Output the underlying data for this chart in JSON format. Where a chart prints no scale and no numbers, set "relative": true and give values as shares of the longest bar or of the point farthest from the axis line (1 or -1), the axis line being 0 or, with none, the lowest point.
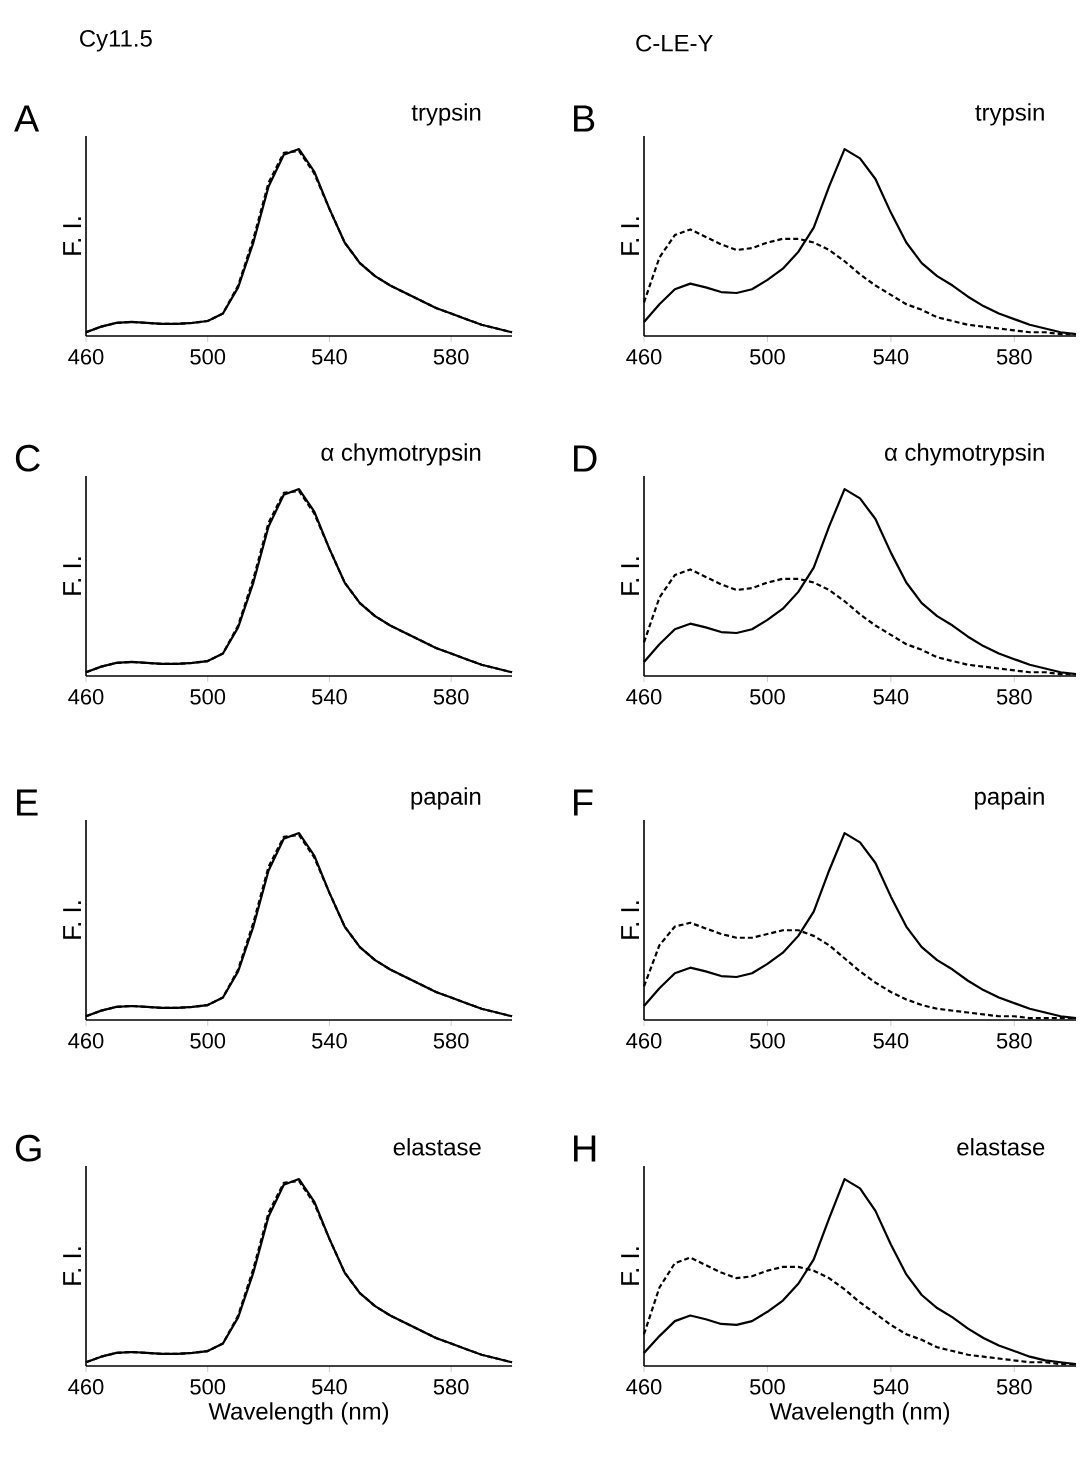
{
  "chart_data": [
    {
      "type": "line",
      "title": "Cy11.5",
      "ylabel": "F. I.",
      "annotations": [
        "A",
        "trypsin"
      ],
      "relative": true,
      "tick_labels": "x",
      "xlim": [
        460,
        600
      ],
      "xticks": [
        460,
        500,
        540,
        580
      ],
      "x": [
        460,
        465,
        470,
        475,
        480,
        485,
        490,
        495,
        500,
        505,
        510,
        515,
        520,
        525,
        530,
        535,
        540,
        545,
        550,
        555,
        560,
        565,
        570,
        575,
        580,
        585,
        590,
        595,
        600
      ],
      "series": [
        {
          "color": "#000000",
          "line_style": "solid",
          "values": [
            0.02,
            0.05,
            0.07,
            0.075,
            0.07,
            0.065,
            0.065,
            0.07,
            0.08,
            0.12,
            0.26,
            0.5,
            0.8,
            0.97,
            1.0,
            0.88,
            0.68,
            0.5,
            0.39,
            0.32,
            0.27,
            0.23,
            0.19,
            0.15,
            0.12,
            0.09,
            0.06,
            0.04,
            0.02
          ]
        },
        {
          "color": "#000000",
          "line_style": "dashed",
          "values": [
            0.02,
            0.05,
            0.07,
            0.075,
            0.07,
            0.065,
            0.065,
            0.07,
            0.08,
            0.12,
            0.27,
            0.52,
            0.82,
            0.98,
            0.99,
            0.87,
            0.68,
            0.5,
            0.39,
            0.32,
            0.27,
            0.23,
            0.19,
            0.15,
            0.12,
            0.09,
            0.06,
            0.04,
            0.02
          ]
        }
      ]
    },
    {
      "type": "line",
      "title": "C-LE-Y",
      "ylabel": "F. I.",
      "annotations": [
        "B",
        "trypsin"
      ],
      "relative": true,
      "tick_labels": "x",
      "xlim": [
        460,
        600
      ],
      "xticks": [
        460,
        500,
        540,
        580
      ],
      "x": [
        460,
        465,
        470,
        475,
        480,
        485,
        490,
        495,
        500,
        505,
        510,
        515,
        520,
        525,
        530,
        535,
        540,
        545,
        550,
        555,
        560,
        565,
        570,
        575,
        580,
        585,
        590,
        595,
        600
      ],
      "series": [
        {
          "color": "#000000",
          "line_style": "solid",
          "values": [
            0.075,
            0.17,
            0.25,
            0.28,
            0.26,
            0.235,
            0.23,
            0.25,
            0.3,
            0.36,
            0.45,
            0.58,
            0.8,
            1.0,
            0.95,
            0.84,
            0.66,
            0.5,
            0.39,
            0.32,
            0.27,
            0.21,
            0.16,
            0.12,
            0.09,
            0.06,
            0.04,
            0.02,
            0.01
          ]
        },
        {
          "color": "#000000",
          "line_style": "dashed",
          "values": [
            0.18,
            0.42,
            0.54,
            0.57,
            0.53,
            0.49,
            0.46,
            0.47,
            0.5,
            0.52,
            0.52,
            0.5,
            0.46,
            0.4,
            0.33,
            0.27,
            0.22,
            0.17,
            0.14,
            0.1,
            0.08,
            0.06,
            0.05,
            0.04,
            0.03,
            0.02,
            0.02,
            0.01,
            0.01
          ]
        }
      ]
    },
    {
      "type": "line",
      "ylabel": "F. I.",
      "annotations": [
        "C",
        "α chymotrypsin"
      ],
      "relative": true,
      "tick_labels": "x",
      "xlim": [
        460,
        600
      ],
      "xticks": [
        460,
        500,
        540,
        580
      ],
      "x": [
        460,
        465,
        470,
        475,
        480,
        485,
        490,
        495,
        500,
        505,
        510,
        515,
        520,
        525,
        530,
        535,
        540,
        545,
        550,
        555,
        560,
        565,
        570,
        575,
        580,
        585,
        590,
        595,
        600
      ],
      "series": [
        {
          "color": "#000000",
          "line_style": "solid",
          "values": [
            0.02,
            0.05,
            0.07,
            0.075,
            0.07,
            0.065,
            0.065,
            0.07,
            0.08,
            0.12,
            0.26,
            0.5,
            0.8,
            0.97,
            1.0,
            0.88,
            0.68,
            0.5,
            0.39,
            0.32,
            0.27,
            0.23,
            0.19,
            0.15,
            0.12,
            0.09,
            0.06,
            0.04,
            0.02
          ]
        },
        {
          "color": "#000000",
          "line_style": "dashed",
          "values": [
            0.02,
            0.05,
            0.07,
            0.075,
            0.07,
            0.065,
            0.065,
            0.07,
            0.08,
            0.12,
            0.27,
            0.52,
            0.82,
            0.98,
            0.99,
            0.87,
            0.68,
            0.5,
            0.39,
            0.32,
            0.27,
            0.23,
            0.19,
            0.15,
            0.12,
            0.09,
            0.06,
            0.04,
            0.02
          ]
        }
      ]
    },
    {
      "type": "line",
      "ylabel": "F. I.",
      "annotations": [
        "D",
        "α chymotrypsin"
      ],
      "relative": true,
      "tick_labels": "x",
      "xlim": [
        460,
        600
      ],
      "xticks": [
        460,
        500,
        540,
        580
      ],
      "x": [
        460,
        465,
        470,
        475,
        480,
        485,
        490,
        495,
        500,
        505,
        510,
        515,
        520,
        525,
        530,
        535,
        540,
        545,
        550,
        555,
        560,
        565,
        570,
        575,
        580,
        585,
        590,
        595,
        600
      ],
      "series": [
        {
          "color": "#000000",
          "line_style": "solid",
          "values": [
            0.075,
            0.17,
            0.25,
            0.28,
            0.26,
            0.235,
            0.23,
            0.25,
            0.3,
            0.36,
            0.45,
            0.58,
            0.8,
            1.0,
            0.95,
            0.84,
            0.66,
            0.5,
            0.39,
            0.32,
            0.27,
            0.21,
            0.16,
            0.12,
            0.09,
            0.06,
            0.04,
            0.02,
            0.01
          ]
        },
        {
          "color": "#000000",
          "line_style": "dashed",
          "values": [
            0.18,
            0.42,
            0.54,
            0.57,
            0.53,
            0.49,
            0.46,
            0.47,
            0.5,
            0.52,
            0.52,
            0.5,
            0.46,
            0.4,
            0.33,
            0.27,
            0.22,
            0.17,
            0.14,
            0.1,
            0.08,
            0.06,
            0.05,
            0.04,
            0.03,
            0.02,
            0.02,
            0.01,
            0.01
          ]
        }
      ]
    },
    {
      "type": "line",
      "ylabel": "F. I.",
      "annotations": [
        "E",
        "papain"
      ],
      "relative": true,
      "tick_labels": "x",
      "xlim": [
        460,
        600
      ],
      "xticks": [
        460,
        500,
        540,
        580
      ],
      "x": [
        460,
        465,
        470,
        475,
        480,
        485,
        490,
        495,
        500,
        505,
        510,
        515,
        520,
        525,
        530,
        535,
        540,
        545,
        550,
        555,
        560,
        565,
        570,
        575,
        580,
        585,
        590,
        595,
        600
      ],
      "series": [
        {
          "color": "#000000",
          "line_style": "solid",
          "values": [
            0.02,
            0.05,
            0.07,
            0.075,
            0.07,
            0.065,
            0.065,
            0.07,
            0.08,
            0.12,
            0.26,
            0.5,
            0.8,
            0.97,
            1.0,
            0.88,
            0.68,
            0.5,
            0.39,
            0.32,
            0.27,
            0.23,
            0.19,
            0.15,
            0.12,
            0.09,
            0.06,
            0.04,
            0.02
          ]
        },
        {
          "color": "#000000",
          "line_style": "dashed",
          "values": [
            0.02,
            0.05,
            0.07,
            0.075,
            0.07,
            0.065,
            0.065,
            0.07,
            0.08,
            0.12,
            0.27,
            0.52,
            0.82,
            0.98,
            0.99,
            0.87,
            0.68,
            0.5,
            0.39,
            0.32,
            0.27,
            0.23,
            0.19,
            0.15,
            0.12,
            0.09,
            0.06,
            0.04,
            0.02
          ]
        }
      ]
    },
    {
      "type": "line",
      "ylabel": "F. I.",
      "annotations": [
        "F",
        "papain"
      ],
      "relative": true,
      "tick_labels": "x",
      "xlim": [
        460,
        600
      ],
      "xticks": [
        460,
        500,
        540,
        580
      ],
      "x": [
        460,
        465,
        470,
        475,
        480,
        485,
        490,
        495,
        500,
        505,
        510,
        515,
        520,
        525,
        530,
        535,
        540,
        545,
        550,
        555,
        560,
        565,
        570,
        575,
        580,
        585,
        590,
        595,
        600
      ],
      "series": [
        {
          "color": "#000000",
          "line_style": "solid",
          "values": [
            0.075,
            0.17,
            0.25,
            0.28,
            0.26,
            0.235,
            0.23,
            0.25,
            0.3,
            0.36,
            0.45,
            0.58,
            0.8,
            1.0,
            0.95,
            0.84,
            0.66,
            0.5,
            0.39,
            0.32,
            0.27,
            0.21,
            0.16,
            0.12,
            0.09,
            0.06,
            0.04,
            0.02,
            0.01
          ]
        },
        {
          "color": "#000000",
          "line_style": "dashed",
          "values": [
            0.18,
            0.4,
            0.5,
            0.52,
            0.49,
            0.46,
            0.44,
            0.44,
            0.46,
            0.48,
            0.48,
            0.45,
            0.4,
            0.33,
            0.26,
            0.2,
            0.15,
            0.11,
            0.08,
            0.06,
            0.05,
            0.04,
            0.03,
            0.02,
            0.02,
            0.01,
            0.01,
            0.01,
            0.01
          ]
        }
      ]
    },
    {
      "type": "line",
      "ylabel": "F. I.",
      "xlabel": "Wavelength (nm)",
      "annotations": [
        "G",
        "elastase"
      ],
      "relative": true,
      "tick_labels": "x",
      "xlim": [
        460,
        600
      ],
      "xticks": [
        460,
        500,
        540,
        580
      ],
      "x": [
        460,
        465,
        470,
        475,
        480,
        485,
        490,
        495,
        500,
        505,
        510,
        515,
        520,
        525,
        530,
        535,
        540,
        545,
        550,
        555,
        560,
        565,
        570,
        575,
        580,
        585,
        590,
        595,
        600
      ],
      "series": [
        {
          "color": "#000000",
          "line_style": "solid",
          "values": [
            0.02,
            0.05,
            0.07,
            0.075,
            0.07,
            0.065,
            0.065,
            0.07,
            0.08,
            0.12,
            0.26,
            0.5,
            0.8,
            0.97,
            1.0,
            0.88,
            0.68,
            0.5,
            0.39,
            0.32,
            0.27,
            0.23,
            0.19,
            0.15,
            0.12,
            0.09,
            0.06,
            0.04,
            0.02
          ]
        },
        {
          "color": "#000000",
          "line_style": "dashed",
          "values": [
            0.02,
            0.05,
            0.07,
            0.075,
            0.07,
            0.065,
            0.065,
            0.07,
            0.08,
            0.12,
            0.27,
            0.52,
            0.82,
            0.98,
            0.99,
            0.87,
            0.68,
            0.5,
            0.39,
            0.32,
            0.27,
            0.23,
            0.19,
            0.15,
            0.12,
            0.09,
            0.06,
            0.04,
            0.02
          ]
        }
      ]
    },
    {
      "type": "line",
      "ylabel": "F. I.",
      "xlabel": "Wavelength (nm)",
      "annotations": [
        "H",
        "elastase"
      ],
      "relative": true,
      "tick_labels": "x",
      "xlim": [
        460,
        600
      ],
      "xticks": [
        460,
        500,
        540,
        580
      ],
      "x": [
        460,
        465,
        470,
        475,
        480,
        485,
        490,
        495,
        500,
        505,
        510,
        515,
        520,
        525,
        530,
        535,
        540,
        545,
        550,
        555,
        560,
        565,
        570,
        575,
        580,
        585,
        590,
        595,
        600
      ],
      "series": [
        {
          "color": "#000000",
          "line_style": "solid",
          "values": [
            0.07,
            0.16,
            0.24,
            0.27,
            0.25,
            0.225,
            0.22,
            0.24,
            0.29,
            0.35,
            0.44,
            0.57,
            0.79,
            1.0,
            0.95,
            0.83,
            0.65,
            0.49,
            0.38,
            0.31,
            0.26,
            0.2,
            0.15,
            0.11,
            0.08,
            0.05,
            0.03,
            0.02,
            0.01
          ]
        },
        {
          "color": "#000000",
          "line_style": "dashed",
          "values": [
            0.17,
            0.42,
            0.55,
            0.58,
            0.54,
            0.5,
            0.47,
            0.48,
            0.51,
            0.53,
            0.53,
            0.51,
            0.47,
            0.41,
            0.34,
            0.28,
            0.22,
            0.17,
            0.14,
            0.1,
            0.08,
            0.06,
            0.05,
            0.04,
            0.03,
            0.02,
            0.02,
            0.01,
            0.01
          ]
        }
      ]
    }
  ]
}
